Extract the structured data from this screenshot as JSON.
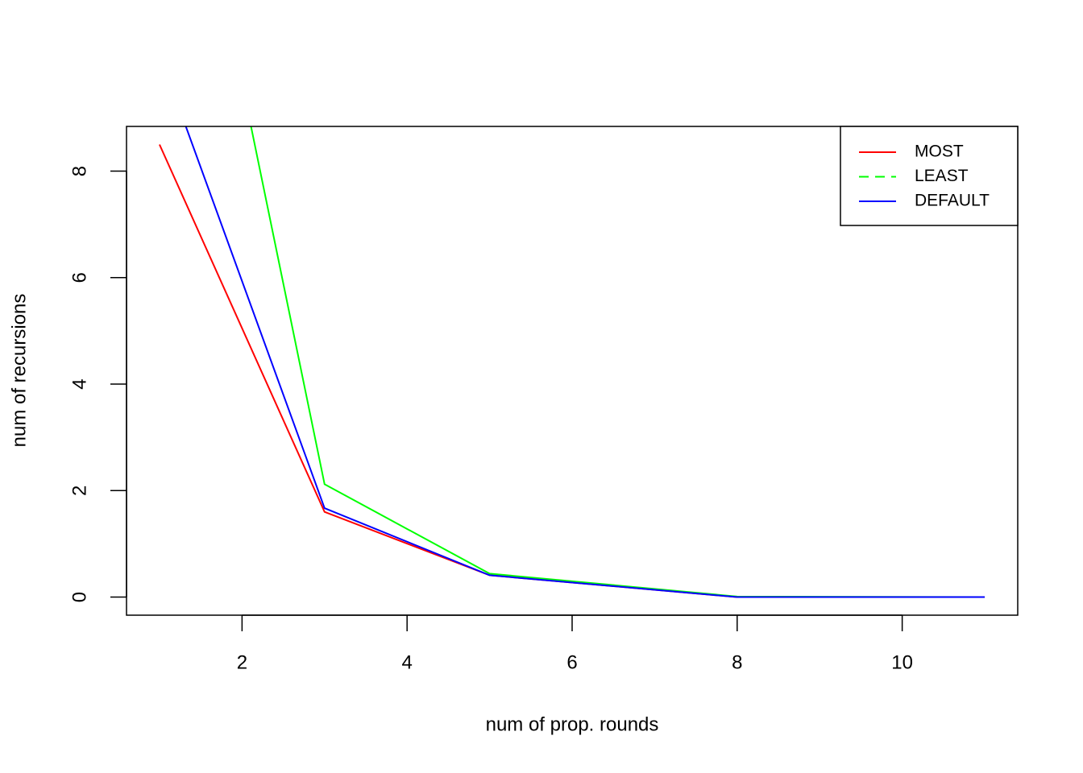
{
  "chart_data": {
    "type": "line",
    "x_label": "num of prop. rounds",
    "y_label": "num of recursions",
    "x": [
      1,
      3,
      5,
      8,
      11
    ],
    "series": [
      {
        "name": "MOST",
        "color": "#ff0000",
        "values": [
          8.5,
          1.6,
          0.41,
          0,
          0
        ]
      },
      {
        "name": "LEAST",
        "color": "#00ff00",
        "values": [
          17.2,
          2.12,
          0.44,
          0.01,
          0
        ],
        "legend_dash": true
      },
      {
        "name": "DEFAULT",
        "color": "#0000ff",
        "values": [
          10.2,
          1.67,
          0.41,
          0,
          0
        ]
      }
    ],
    "xlim": [
      0.6,
      11.4
    ],
    "xticks": [
      2,
      4,
      6,
      8,
      10
    ],
    "ylim": [
      -0.34,
      8.84
    ],
    "yticks": [
      0,
      2,
      4,
      6,
      8
    ],
    "legend": "top-right"
  }
}
